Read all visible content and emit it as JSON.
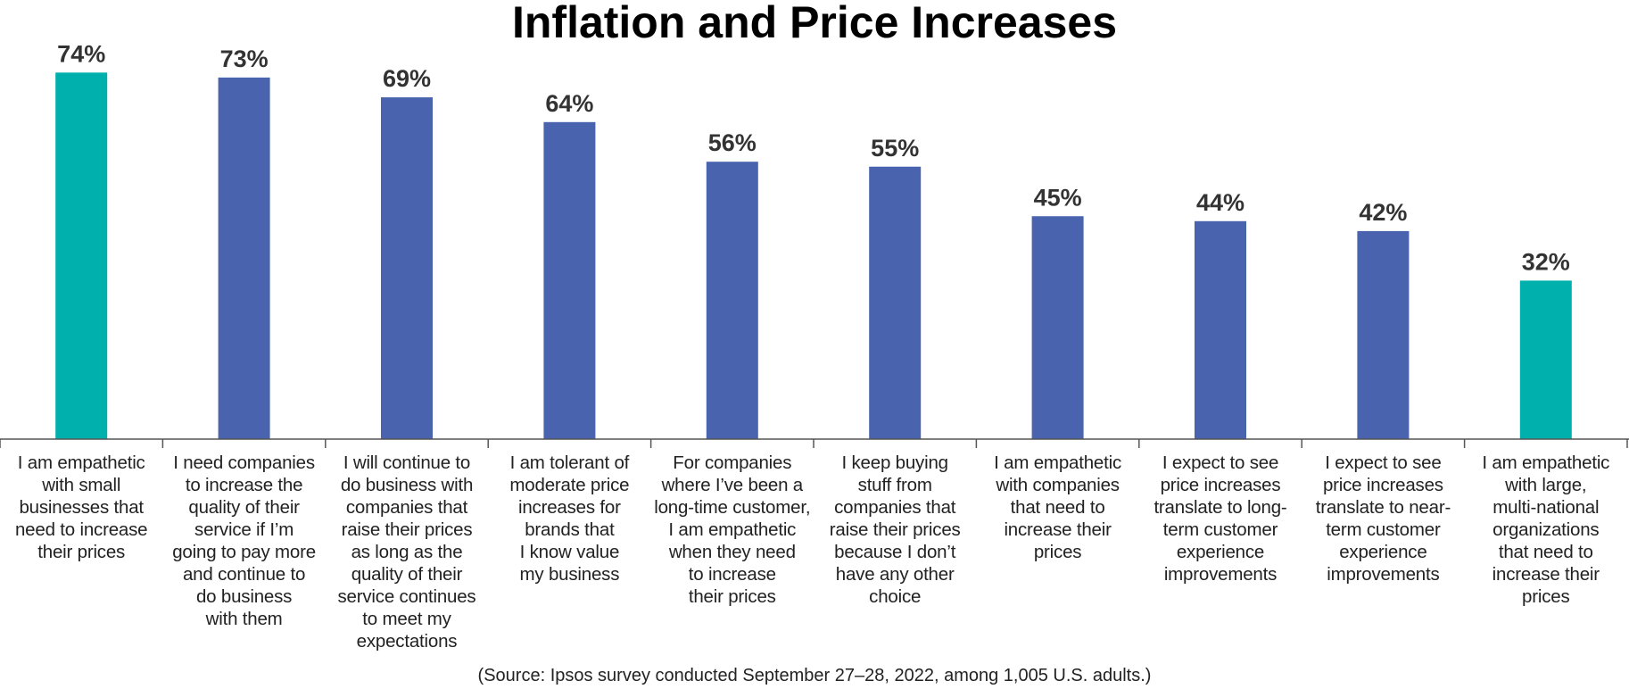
{
  "chart_data": {
    "type": "bar",
    "title": "Inflation and Price Increases",
    "xlabel": "",
    "ylabel": "",
    "ylim": [
      0,
      100
    ],
    "grid": false,
    "categories": [
      "I am empathetic\nwith small\nbusinesses that\nneed to increase\ntheir prices",
      "I need companies\nto increase the\nquality of their\nservice if I’m\ngoing to pay more\nand continue to\ndo business\nwith them",
      "I will continue to\ndo business with\ncompanies that\nraise their prices\nas long as the\nquality of their\nservice continues\nto meet my\nexpectations",
      "I am tolerant of\nmoderate price\nincreases for\nbrands that\nI know value\nmy business",
      "For companies\nwhere I’ve been a\nlong-time customer,\nI am empathetic\nwhen they need\nto increase\ntheir prices",
      "I keep buying\nstuff from\ncompanies that\nraise their prices\nbecause I don’t\nhave any other\nchoice",
      "I am empathetic\nwith companies\nthat need to\nincrease their\nprices",
      "I expect to see\nprice increases\ntranslate to long-\nterm customer\nexperience\nimprovements",
      "I expect to see\nprice increases\ntranslate to near-\nterm customer\nexperience\nimprovements",
      "I am empathetic\nwith large,\nmulti-national\norganizations\nthat need to\nincrease their\nprices"
    ],
    "values": [
      74,
      73,
      69,
      64,
      56,
      55,
      45,
      44,
      42,
      32
    ],
    "data_labels": [
      "74%",
      "73%",
      "69%",
      "64%",
      "56%",
      "55%",
      "45%",
      "44%",
      "42%",
      "32%"
    ],
    "highlight": [
      true,
      false,
      false,
      false,
      false,
      false,
      false,
      false,
      false,
      true
    ],
    "colors": {
      "primary": "#4a63ae",
      "highlight": "#00b0ad",
      "axis": "#555555",
      "label": "#333333"
    }
  },
  "source": "(Source: Ipsos survey conducted September 27–28, 2022, among 1,005 U.S. adults.)"
}
